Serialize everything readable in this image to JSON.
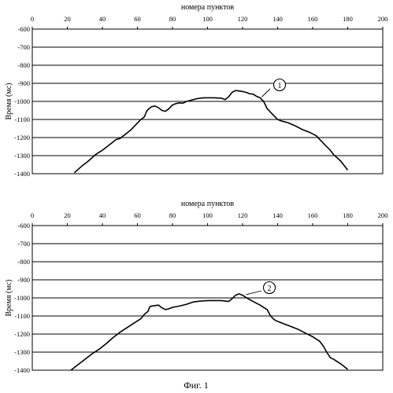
{
  "caption": "Фиг. 1",
  "chart_data": [
    {
      "type": "line",
      "title": "номера пунктов",
      "xlabel": "номера пунктов",
      "ylabel": "Время (мс)",
      "xlim": [
        0,
        200
      ],
      "ylim": [
        -1400,
        -600
      ],
      "x_ticks": [
        0,
        20,
        40,
        60,
        80,
        100,
        120,
        140,
        160,
        180,
        200
      ],
      "y_ticks": [
        -600,
        -700,
        -800,
        -900,
        -1000,
        -1100,
        -1200,
        -1300,
        -1400
      ],
      "x_axis_position": "top",
      "grid": "horizontal",
      "annotation": "1",
      "annotation_point": [
        131,
        -975
      ],
      "series": [
        {
          "x": [
            24,
            28,
            32,
            36,
            40,
            44,
            48,
            50,
            52,
            54,
            56,
            58,
            60,
            62,
            64,
            65,
            66,
            68,
            70,
            72,
            74,
            76,
            78,
            80,
            82,
            84,
            86,
            88,
            90,
            92,
            94,
            96,
            98,
            100,
            104,
            108,
            110,
            112,
            114,
            116,
            118,
            120,
            122,
            124,
            126,
            128,
            130,
            132,
            134,
            136,
            138,
            140,
            142,
            146,
            150,
            154,
            158,
            162,
            164,
            166,
            168,
            170,
            172,
            176,
            180
          ],
          "y": [
            -1395,
            -1360,
            -1330,
            -1295,
            -1270,
            -1240,
            -1210,
            -1205,
            -1190,
            -1175,
            -1160,
            -1140,
            -1120,
            -1100,
            -1085,
            -1060,
            -1045,
            -1030,
            -1025,
            -1035,
            -1050,
            -1055,
            -1040,
            -1020,
            -1012,
            -1008,
            -1010,
            -1000,
            -995,
            -990,
            -985,
            -982,
            -980,
            -980,
            -980,
            -982,
            -990,
            -975,
            -950,
            -940,
            -942,
            -945,
            -950,
            -958,
            -960,
            -972,
            -980,
            -1000,
            -1040,
            -1060,
            -1080,
            -1100,
            -1108,
            -1118,
            -1135,
            -1155,
            -1170,
            -1190,
            -1210,
            -1230,
            -1250,
            -1270,
            -1295,
            -1330,
            -1380
          ]
        }
      ]
    },
    {
      "type": "line",
      "title": "номера пунктов",
      "xlabel": "номера пунктов",
      "ylabel": "Время (мс)",
      "xlim": [
        0,
        200
      ],
      "ylim": [
        -1400,
        -600
      ],
      "x_ticks": [
        0,
        20,
        40,
        60,
        80,
        100,
        120,
        140,
        160,
        180,
        200
      ],
      "y_ticks": [
        -600,
        -700,
        -800,
        -900,
        -1000,
        -1100,
        -1200,
        -1300,
        -1400
      ],
      "x_axis_position": "top",
      "grid": "horizontal",
      "annotation": "2",
      "annotation_point": [
        122,
        -982
      ],
      "series": [
        {
          "x": [
            22,
            26,
            30,
            34,
            38,
            42,
            46,
            50,
            54,
            58,
            62,
            64,
            66,
            67,
            68,
            72,
            74,
            76,
            78,
            80,
            84,
            88,
            92,
            96,
            100,
            104,
            108,
            112,
            114,
            116,
            118,
            120,
            122,
            126,
            130,
            134,
            136,
            138,
            140,
            144,
            148,
            152,
            156,
            160,
            164,
            166,
            168,
            170,
            172,
            176,
            180
          ],
          "y": [
            -1400,
            -1370,
            -1340,
            -1310,
            -1285,
            -1255,
            -1220,
            -1190,
            -1165,
            -1140,
            -1115,
            -1090,
            -1075,
            -1050,
            -1045,
            -1040,
            -1055,
            -1065,
            -1060,
            -1052,
            -1045,
            -1035,
            -1022,
            -1018,
            -1015,
            -1015,
            -1015,
            -1020,
            -1005,
            -985,
            -978,
            -985,
            -998,
            -1020,
            -1040,
            -1065,
            -1100,
            -1120,
            -1130,
            -1145,
            -1160,
            -1175,
            -1195,
            -1215,
            -1240,
            -1265,
            -1300,
            -1330,
            -1340,
            -1365,
            -1395
          ]
        }
      ]
    }
  ]
}
